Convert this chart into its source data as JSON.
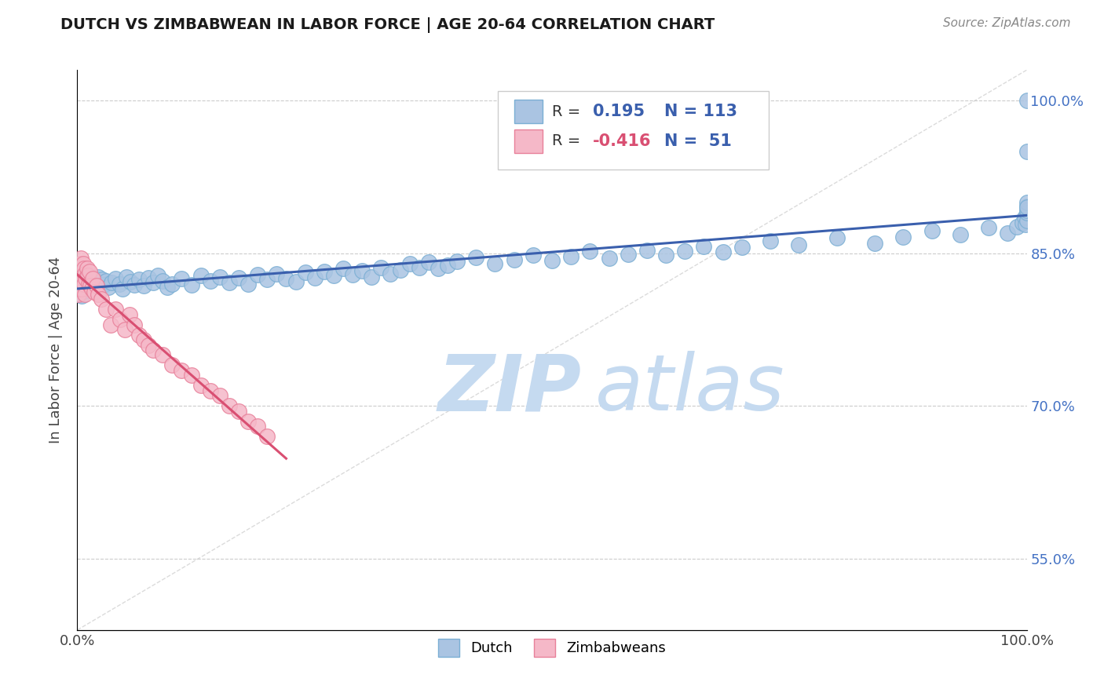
{
  "title": "DUTCH VS ZIMBABWEAN IN LABOR FORCE | AGE 20-64 CORRELATION CHART",
  "source_text": "Source: ZipAtlas.com",
  "ylabel": "In Labor Force | Age 20-64",
  "xlim": [
    0.0,
    1.0
  ],
  "ylim": [
    0.48,
    1.03
  ],
  "ytick_labels": [
    "55.0%",
    "70.0%",
    "85.0%",
    "100.0%"
  ],
  "ytick_values": [
    0.55,
    0.7,
    0.85,
    1.0
  ],
  "xtick_labels": [
    "0.0%",
    "100.0%"
  ],
  "xtick_values": [
    0.0,
    1.0
  ],
  "dutch_color": "#aac4e2",
  "dutch_edge_color": "#7bafd4",
  "zimbabwean_color": "#f5b8c8",
  "zimbabwean_edge_color": "#e8809a",
  "trend_dutch_color": "#3a5fad",
  "trend_zim_color": "#d94f72",
  "ref_line_color": "#cccccc",
  "legend_dutch_label": "Dutch",
  "legend_zim_label": "Zimbabweans",
  "R_dutch": 0.195,
  "N_dutch": 113,
  "R_zim": -0.416,
  "N_zim": 51,
  "dutch_x": [
    0.001,
    0.002,
    0.002,
    0.003,
    0.003,
    0.004,
    0.004,
    0.005,
    0.005,
    0.006,
    0.006,
    0.007,
    0.007,
    0.008,
    0.008,
    0.009,
    0.01,
    0.011,
    0.012,
    0.013,
    0.014,
    0.015,
    0.016,
    0.017,
    0.018,
    0.02,
    0.022,
    0.024,
    0.026,
    0.028,
    0.03,
    0.033,
    0.036,
    0.04,
    0.044,
    0.048,
    0.052,
    0.056,
    0.06,
    0.065,
    0.07,
    0.075,
    0.08,
    0.085,
    0.09,
    0.095,
    0.1,
    0.11,
    0.12,
    0.13,
    0.14,
    0.15,
    0.16,
    0.17,
    0.18,
    0.19,
    0.2,
    0.21,
    0.22,
    0.23,
    0.24,
    0.25,
    0.26,
    0.27,
    0.28,
    0.29,
    0.3,
    0.31,
    0.32,
    0.33,
    0.34,
    0.35,
    0.36,
    0.37,
    0.38,
    0.39,
    0.4,
    0.42,
    0.44,
    0.46,
    0.48,
    0.5,
    0.52,
    0.54,
    0.56,
    0.58,
    0.6,
    0.62,
    0.64,
    0.66,
    0.68,
    0.7,
    0.73,
    0.76,
    0.8,
    0.84,
    0.87,
    0.9,
    0.93,
    0.96,
    0.98,
    0.99,
    0.995,
    0.998,
    0.999,
    1.0,
    1.0,
    1.0,
    1.0,
    1.0,
    1.0,
    1.0,
    1.0
  ],
  "dutch_y": [
    0.815,
    0.82,
    0.81,
    0.825,
    0.818,
    0.822,
    0.812,
    0.819,
    0.808,
    0.823,
    0.816,
    0.821,
    0.813,
    0.826,
    0.817,
    0.824,
    0.82,
    0.815,
    0.828,
    0.819,
    0.823,
    0.817,
    0.821,
    0.826,
    0.818,
    0.822,
    0.827,
    0.82,
    0.824,
    0.819,
    0.823,
    0.817,
    0.821,
    0.825,
    0.82,
    0.815,
    0.827,
    0.822,
    0.819,
    0.824,
    0.818,
    0.826,
    0.821,
    0.828,
    0.823,
    0.817,
    0.82,
    0.825,
    0.819,
    0.828,
    0.823,
    0.827,
    0.821,
    0.826,
    0.82,
    0.829,
    0.824,
    0.83,
    0.825,
    0.822,
    0.831,
    0.826,
    0.832,
    0.828,
    0.835,
    0.829,
    0.833,
    0.827,
    0.836,
    0.83,
    0.834,
    0.84,
    0.836,
    0.841,
    0.835,
    0.838,
    0.842,
    0.846,
    0.84,
    0.844,
    0.848,
    0.843,
    0.847,
    0.852,
    0.845,
    0.849,
    0.853,
    0.848,
    0.852,
    0.857,
    0.851,
    0.856,
    0.862,
    0.858,
    0.865,
    0.86,
    0.866,
    0.872,
    0.868,
    0.875,
    0.87,
    0.876,
    0.88,
    0.885,
    0.878,
    0.882,
    0.89,
    0.896,
    0.892,
    0.9,
    0.895,
    0.95,
    1.0
  ],
  "zim_x": [
    0.001,
    0.001,
    0.002,
    0.002,
    0.003,
    0.003,
    0.004,
    0.004,
    0.005,
    0.005,
    0.006,
    0.006,
    0.007,
    0.007,
    0.008,
    0.008,
    0.009,
    0.01,
    0.011,
    0.012,
    0.013,
    0.014,
    0.015,
    0.016,
    0.018,
    0.02,
    0.022,
    0.025,
    0.03,
    0.035,
    0.04,
    0.045,
    0.05,
    0.055,
    0.06,
    0.065,
    0.07,
    0.075,
    0.08,
    0.09,
    0.1,
    0.11,
    0.12,
    0.13,
    0.14,
    0.15,
    0.16,
    0.17,
    0.18,
    0.19,
    0.2
  ],
  "zim_y": [
    0.83,
    0.81,
    0.835,
    0.815,
    0.825,
    0.84,
    0.82,
    0.845,
    0.83,
    0.815,
    0.84,
    0.825,
    0.835,
    0.82,
    0.81,
    0.83,
    0.825,
    0.835,
    0.828,
    0.82,
    0.832,
    0.818,
    0.815,
    0.825,
    0.812,
    0.818,
    0.81,
    0.805,
    0.795,
    0.78,
    0.795,
    0.785,
    0.775,
    0.79,
    0.78,
    0.77,
    0.765,
    0.76,
    0.755,
    0.75,
    0.74,
    0.735,
    0.73,
    0.72,
    0.715,
    0.71,
    0.7,
    0.695,
    0.685,
    0.68,
    0.67
  ],
  "watermark_zip": "ZIP",
  "watermark_atlas": "atlas",
  "watermark_color": "#c5daf0",
  "background_color": "#ffffff",
  "grid_color": "#cccccc"
}
